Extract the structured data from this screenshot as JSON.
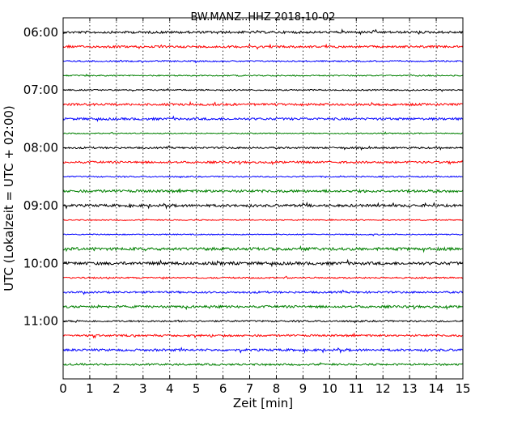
{
  "chart_data": {
    "type": "line",
    "title": "BW.MANZ..HHZ 2018-10-02",
    "xlabel": "Zeit  [min]",
    "ylabel": "UTC (Lokalzeit = UTC + 02:00)",
    "x_range": [
      0,
      15
    ],
    "x_ticks": [
      "0",
      "1",
      "2",
      "3",
      "4",
      "5",
      "6",
      "7",
      "8",
      "9",
      "10",
      "11",
      "12",
      "13",
      "14",
      "15"
    ],
    "y_range_hours": [
      "05:45",
      "12:00"
    ],
    "y_ticks": [
      "06:00",
      "07:00",
      "08:00",
      "09:00",
      "10:00",
      "11:00"
    ],
    "grid": "vertical dotted at each minute",
    "trace_interval_minutes": 15,
    "trace_colors_cycle": [
      "#000000",
      "#ff0000",
      "#0000ff",
      "#008000"
    ],
    "series": [
      {
        "start": "06:00",
        "color": "#000000"
      },
      {
        "start": "06:15",
        "color": "#ff0000"
      },
      {
        "start": "06:30",
        "color": "#0000ff"
      },
      {
        "start": "06:45",
        "color": "#008000"
      },
      {
        "start": "07:00",
        "color": "#000000"
      },
      {
        "start": "07:15",
        "color": "#ff0000"
      },
      {
        "start": "07:30",
        "color": "#0000ff"
      },
      {
        "start": "07:45",
        "color": "#008000"
      },
      {
        "start": "08:00",
        "color": "#000000"
      },
      {
        "start": "08:15",
        "color": "#ff0000"
      },
      {
        "start": "08:30",
        "color": "#0000ff"
      },
      {
        "start": "08:45",
        "color": "#008000"
      },
      {
        "start": "09:00",
        "color": "#000000"
      },
      {
        "start": "09:15",
        "color": "#ff0000"
      },
      {
        "start": "09:30",
        "color": "#0000ff"
      },
      {
        "start": "09:45",
        "color": "#008000"
      },
      {
        "start": "10:00",
        "color": "#000000"
      },
      {
        "start": "10:15",
        "color": "#ff0000"
      },
      {
        "start": "10:30",
        "color": "#0000ff"
      },
      {
        "start": "10:45",
        "color": "#008000"
      },
      {
        "start": "11:00",
        "color": "#000000"
      },
      {
        "start": "11:15",
        "color": "#ff0000"
      },
      {
        "start": "11:30",
        "color": "#0000ff"
      },
      {
        "start": "11:45",
        "color": "#008000"
      }
    ]
  }
}
